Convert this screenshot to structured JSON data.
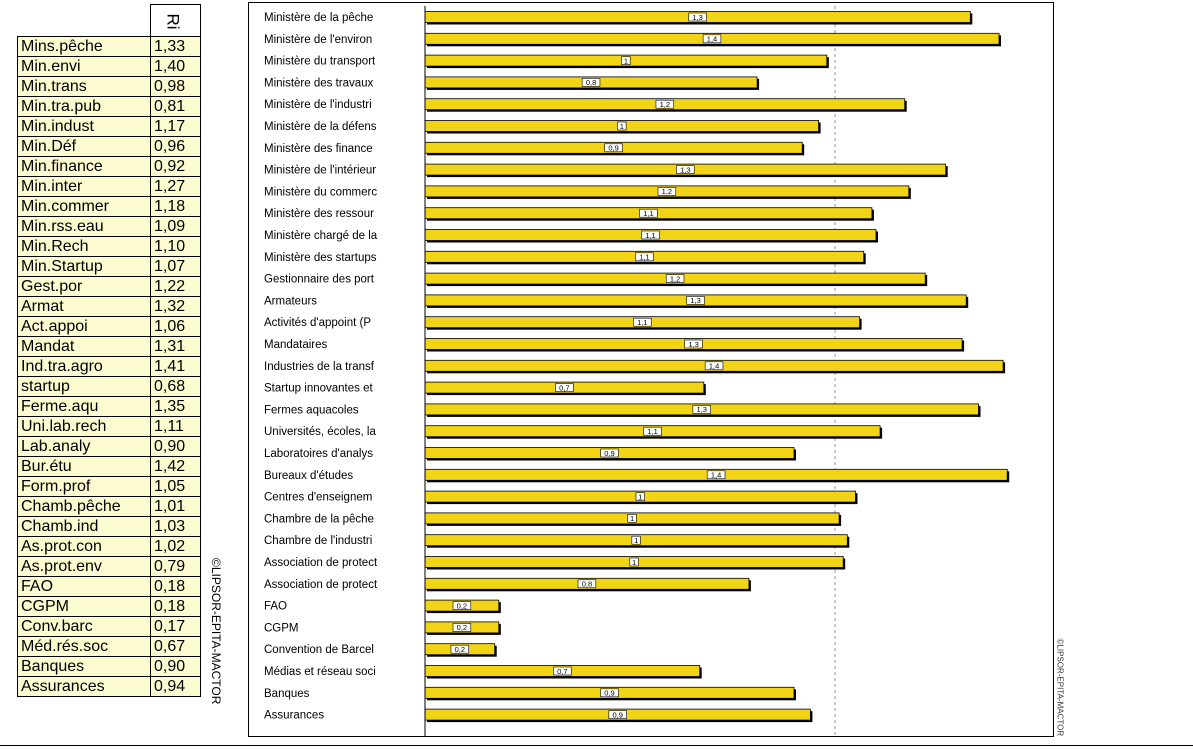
{
  "table": {
    "header": "Ri",
    "rows": [
      {
        "name": "Mins.pêche",
        "value": "1,33"
      },
      {
        "name": "Min.envi",
        "value": "1,40"
      },
      {
        "name": "Min.trans",
        "value": "0,98"
      },
      {
        "name": "Min.tra.pub",
        "value": "0,81"
      },
      {
        "name": "Min.indust",
        "value": "1,17"
      },
      {
        "name": "Min.Déf",
        "value": "0,96"
      },
      {
        "name": "Min.finance",
        "value": "0,92"
      },
      {
        "name": "Min.inter",
        "value": "1,27"
      },
      {
        "name": "Min.commer",
        "value": "1,18"
      },
      {
        "name": "Min.rss.eau",
        "value": "1,09"
      },
      {
        "name": "Min.Rech",
        "value": "1,10"
      },
      {
        "name": "Min.Startup",
        "value": "1,07"
      },
      {
        "name": "Gest.por",
        "value": "1,22"
      },
      {
        "name": "Armat",
        "value": "1,32"
      },
      {
        "name": "Act.appoi",
        "value": "1,06"
      },
      {
        "name": "Mandat",
        "value": "1,31"
      },
      {
        "name": "Ind.tra.agro",
        "value": "1,41"
      },
      {
        "name": "startup",
        "value": "0,68"
      },
      {
        "name": "Ferme.aqu",
        "value": "1,35"
      },
      {
        "name": "Uni.lab.rech",
        "value": "1,11"
      },
      {
        "name": "Lab.analy",
        "value": "0,90"
      },
      {
        "name": "Bur.étu",
        "value": "1,42"
      },
      {
        "name": "Form.prof",
        "value": "1,05"
      },
      {
        "name": "Chamb.pêche",
        "value": "1,01"
      },
      {
        "name": "Chamb.ind",
        "value": "1,03"
      },
      {
        "name": "As.prot.con",
        "value": "1,02"
      },
      {
        "name": "As.prot.env",
        "value": "0,79"
      },
      {
        "name": "FAO",
        "value": "0,18"
      },
      {
        "name": "CGPM",
        "value": "0,18"
      },
      {
        "name": "Conv.barc",
        "value": "0,17"
      },
      {
        "name": "Méd.rés.soc",
        "value": "0,67"
      },
      {
        "name": "Banques",
        "value": "0,90"
      },
      {
        "name": "Assurances",
        "value": "0,94"
      }
    ]
  },
  "watermark": "©LIPSOR-EPITA-MACTOR",
  "colors": {
    "bar_fill": "#f2d416",
    "bar_stroke": "#000000",
    "table_bg": "#fdfbd0",
    "reference_line": "#999999"
  },
  "chart_data": {
    "type": "bar",
    "orientation": "horizontal",
    "categories": [
      "Ministère de la pêche",
      "Ministère de l'environ",
      "Ministère du transport",
      "Ministère des travaux",
      "Ministère de l'industri",
      "Ministère de la défens",
      "Ministère des finance",
      "Ministère de l'intérieur",
      "Ministère du commerc",
      "Ministère des ressour",
      "Ministère chargé de la",
      "Ministère des startups",
      "Gestionnaire des port",
      "Armateurs",
      "Activités d'appoint (P",
      "Mandataires",
      "Industries de la transf",
      "Startup innovantes et",
      "Fermes aquacoles",
      "Universités, écoles, la",
      "Laboratoires d'analys",
      "Bureaux d'études",
      "Centres d'enseignem",
      "Chambre de la pêche",
      "Chambre de l'industri",
      "Association de protect",
      "Association de protect",
      "FAO",
      "CGPM",
      "Convention de Barcel",
      "Médias et réseau soci",
      "Banques",
      "Assurances"
    ],
    "values": [
      1.33,
      1.4,
      0.98,
      0.81,
      1.17,
      0.96,
      0.92,
      1.27,
      1.18,
      1.09,
      1.1,
      1.07,
      1.22,
      1.32,
      1.06,
      1.31,
      1.41,
      0.68,
      1.35,
      1.11,
      0.9,
      1.42,
      1.05,
      1.01,
      1.03,
      1.02,
      0.79,
      0.18,
      0.18,
      0.17,
      0.67,
      0.9,
      0.94
    ],
    "data_labels": [
      "1,3",
      "1,4",
      "1",
      "0,8",
      "1,2",
      "1",
      "0,9",
      "1,3",
      "1,2",
      "1,1",
      "1,1",
      "1,1",
      "1,2",
      "1,3",
      "1,1",
      "1,3",
      "1,4",
      "0,7",
      "1,3",
      "1,1",
      "0,9",
      "1,4",
      "1",
      "1",
      "1",
      "1",
      "0,8",
      "0,2",
      "0,2",
      "0,2",
      "0,7",
      "0,9",
      "0,9"
    ],
    "reference_line": {
      "value": 1,
      "label": "1",
      "style": "dashed"
    },
    "xlim": [
      0,
      1.45
    ],
    "grid": false,
    "legend": "none"
  }
}
